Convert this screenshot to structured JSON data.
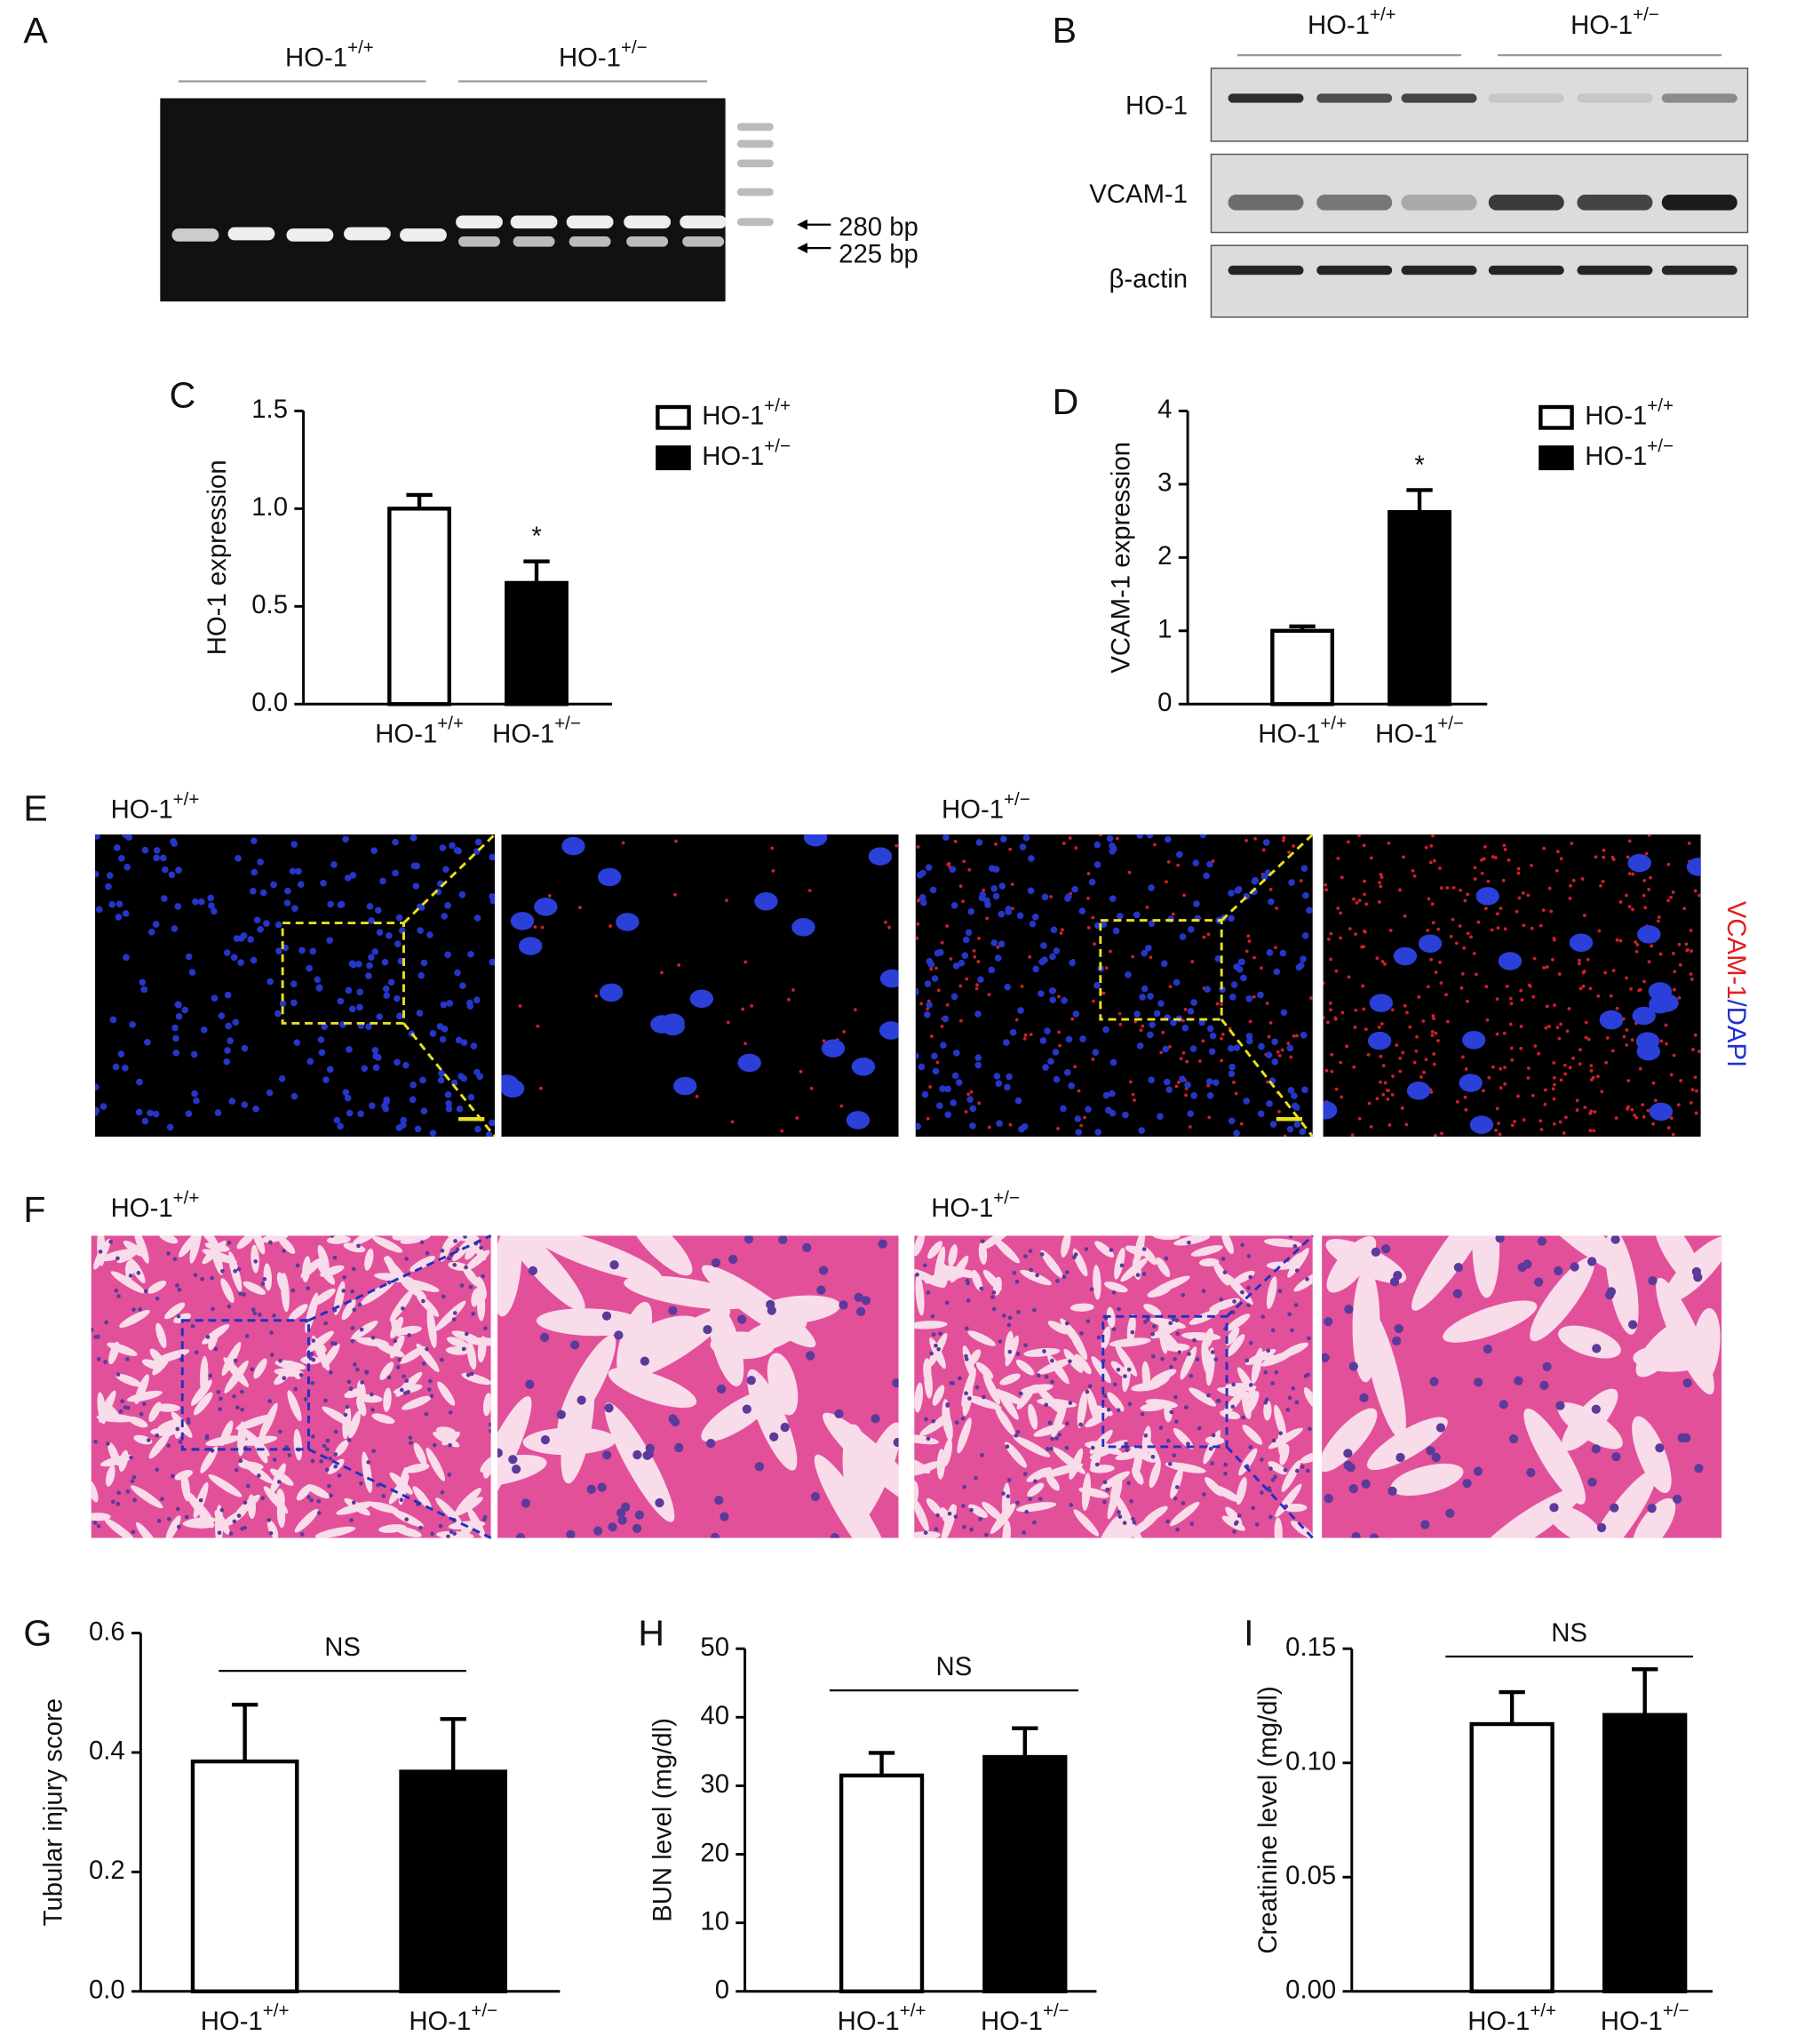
{
  "panel_labels": [
    "A",
    "B",
    "C",
    "D",
    "E",
    "F",
    "G",
    "H",
    "I"
  ],
  "gel": {
    "groups": [
      "HO-1+/+",
      "HO-1+/−"
    ],
    "bands": [
      "280 bp",
      "225 bp"
    ]
  },
  "blot": {
    "groups": [
      "HO-1+/+",
      "HO-1+/−"
    ],
    "rows": [
      "HO-1",
      "VCAM-1",
      "β-actin"
    ]
  },
  "immunofluorescence": {
    "groups": [
      "HO-1+/+",
      "HO-1+/−"
    ],
    "stain": [
      "VCAM-1",
      "/DAPI"
    ]
  },
  "histology": {
    "groups": [
      "HO-1+/+",
      "HO-1+/−"
    ]
  },
  "chart_data": [
    {
      "type": "bar",
      "ylabel": "HO-1 expression",
      "categories": [
        "HO-1+/+",
        "HO-1+/−"
      ],
      "values": [
        1.0,
        0.62
      ],
      "errors": [
        0.07,
        0.11
      ],
      "colors": [
        "#ffffff",
        "#000000"
      ],
      "significance": [
        null,
        "*"
      ],
      "legend": true,
      "ylim": [
        0,
        1.5
      ],
      "yticks": [
        {
          "value": 0,
          "label": "0.0"
        },
        0.5,
        {
          "value": 1,
          "label": "1.0"
        },
        1.5
      ]
    },
    {
      "type": "bar",
      "ylabel": "VCAM-1 expression",
      "categories": [
        "HO-1+/+",
        "HO-1+/−"
      ],
      "values": [
        1.0,
        2.62
      ],
      "errors": [
        0.06,
        0.3
      ],
      "colors": [
        "#ffffff",
        "#000000"
      ],
      "significance": [
        null,
        "*"
      ],
      "legend": true,
      "ylim": [
        0,
        4
      ],
      "yticks": [
        0,
        1,
        2,
        3,
        4
      ]
    },
    {
      "type": "bar",
      "ylabel": "Tubular injury score",
      "categories": [
        "HO-1+/+",
        "HO-1+/−"
      ],
      "values": [
        0.385,
        0.368
      ],
      "errors": [
        0.095,
        0.088
      ],
      "colors": [
        "#ffffff",
        "#000000"
      ],
      "comparison": "NS",
      "legend": false,
      "ylim": [
        0,
        0.6
      ],
      "yticks": [
        {
          "value": 0,
          "label": "0.0"
        },
        0.2,
        0.4,
        0.6
      ]
    },
    {
      "type": "bar",
      "ylabel": "BUN level (mg/dl)",
      "categories": [
        "HO-1+/+",
        "HO-1+/−"
      ],
      "values": [
        31.5,
        34.2
      ],
      "errors": [
        3.3,
        4.2
      ],
      "colors": [
        "#ffffff",
        "#000000"
      ],
      "comparison": "NS",
      "legend": false,
      "ylim": [
        0,
        50
      ],
      "yticks": [
        0,
        10,
        20,
        30,
        40,
        50
      ]
    },
    {
      "type": "bar",
      "ylabel": "Creatinine level (mg/dl)",
      "categories": [
        "HO-1+/+",
        "HO-1+/−"
      ],
      "values": [
        0.117,
        0.121
      ],
      "errors": [
        0.014,
        0.02
      ],
      "colors": [
        "#ffffff",
        "#000000"
      ],
      "comparison": "NS",
      "legend": false,
      "ylim": [
        0,
        0.15
      ],
      "yticks": [
        {
          "value": 0,
          "label": "0.00"
        },
        0.05,
        {
          "value": 0.1,
          "label": "0.10"
        },
        0.15
      ]
    }
  ]
}
